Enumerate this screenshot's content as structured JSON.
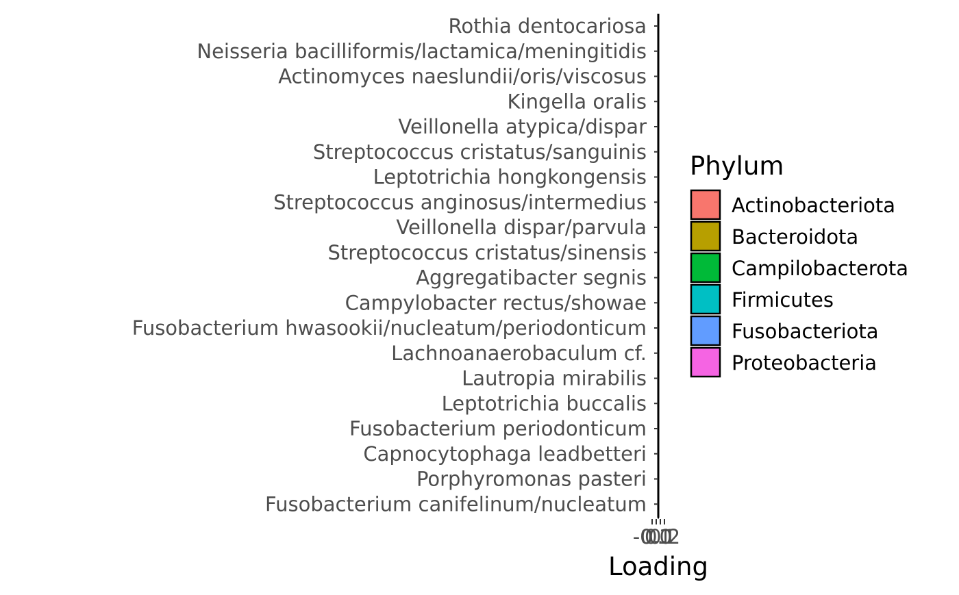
{
  "chart_data": {
    "type": "bar",
    "orientation": "horizontal",
    "xlabel": "Loading",
    "ylabel": "",
    "categories": [
      "Rothia dentocariosa",
      "Neisseria bacilliformis/lactamica/meningitidis",
      "Actinomyces naeslundii/oris/viscosus",
      "Kingella oralis",
      "Veillonella atypica/dispar",
      "Streptococcus cristatus/sanguinis",
      "Leptotrichia hongkongensis",
      "Streptococcus anginosus/intermedius",
      "Veillonella dispar/parvula",
      "Streptococcus cristatus/sinensis",
      "Aggregatibacter segnis",
      "Campylobacter rectus/showae",
      "Fusobacterium hwasookii/nucleatum/periodonticum",
      "Lachnoanaerobaculum cf.",
      "Lautropia mirabilis",
      "Leptotrichia buccalis",
      "Fusobacterium periodonticum",
      "Capnocytophaga leadbetteri",
      "Porphyromonas pasteri",
      "Fusobacterium canifelinum/nucleatum"
    ],
    "values": [
      0,
      0,
      0,
      0,
      0,
      0,
      0,
      0,
      0,
      0,
      0,
      0,
      0,
      0,
      0,
      0,
      0,
      0,
      0,
      0
    ],
    "x_ticks": [
      "-0.1",
      "0.0",
      "0.1",
      "0.2"
    ],
    "x_tick_values": [
      -0.1,
      0.0,
      0.1,
      0.2
    ],
    "xlim": [
      -0.1,
      0.2
    ],
    "grid": false,
    "legend": {
      "title": "Phylum",
      "placement": "right",
      "items": [
        {
          "name": "Actinobacteriota",
          "color": "#F8766D"
        },
        {
          "name": "Bacteroidota",
          "color": "#B79F00"
        },
        {
          "name": "Campilobacterota",
          "color": "#00BA38"
        },
        {
          "name": "Firmicutes",
          "color": "#00BFC4"
        },
        {
          "name": "Fusobacteriota",
          "color": "#619CFF"
        },
        {
          "name": "Proteobacteria",
          "color": "#F564E3"
        }
      ]
    }
  }
}
